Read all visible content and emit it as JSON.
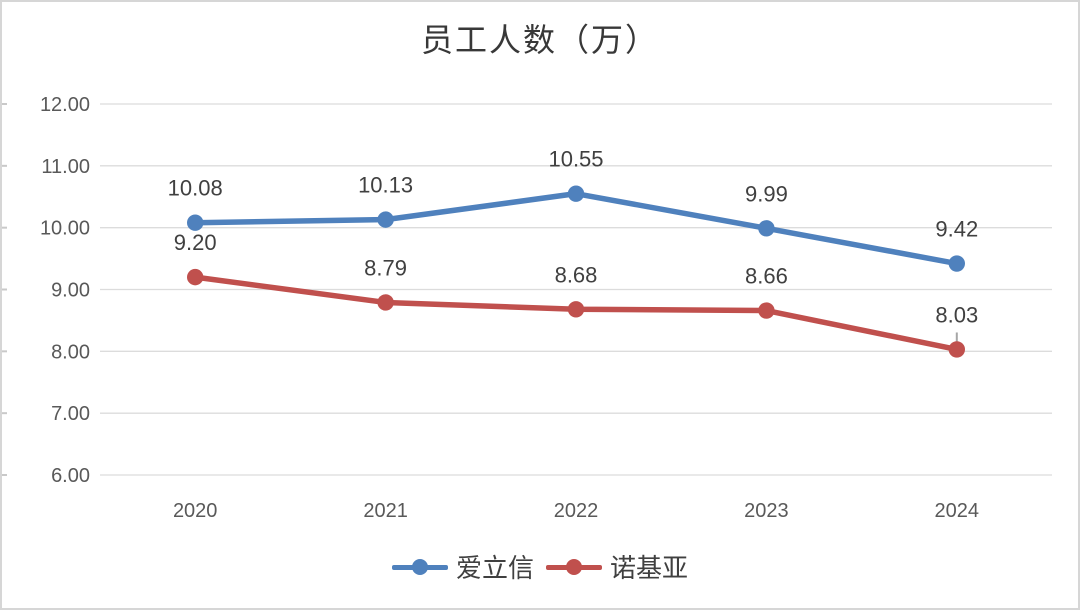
{
  "frame": {
    "background": "#ffffff",
    "border_color": "#d6d6d6"
  },
  "chart_data": {
    "type": "line",
    "title": "员工人数（万）",
    "categories": [
      "2020",
      "2021",
      "2022",
      "2023",
      "2024"
    ],
    "series": [
      {
        "name": "爱立信",
        "color": "#4f81bd",
        "values": [
          10.08,
          10.13,
          10.55,
          9.99,
          9.42
        ]
      },
      {
        "name": "诺基亚",
        "color": "#c0504d",
        "values": [
          9.2,
          8.79,
          8.68,
          8.66,
          8.03
        ]
      }
    ],
    "data_labels_shown": true,
    "data_label_format": "0.00",
    "y_axis": {
      "min": 6,
      "max": 12,
      "step": 1,
      "tick_labels": [
        "12.00",
        "11.00",
        "10.00",
        "9.00",
        "8.00",
        "7.00",
        "6.00"
      ]
    },
    "grid": true,
    "legend_position": "bottom",
    "colors": {
      "gridline": "#dcdcdc",
      "edge_tick": "#c9c9c9",
      "axis_label": "#595959",
      "data_label": "#404040",
      "leader_line": "#a6a6a6"
    },
    "annotations": [
      {
        "type": "leader-line",
        "series_index": 1,
        "point_index": 4
      }
    ]
  }
}
